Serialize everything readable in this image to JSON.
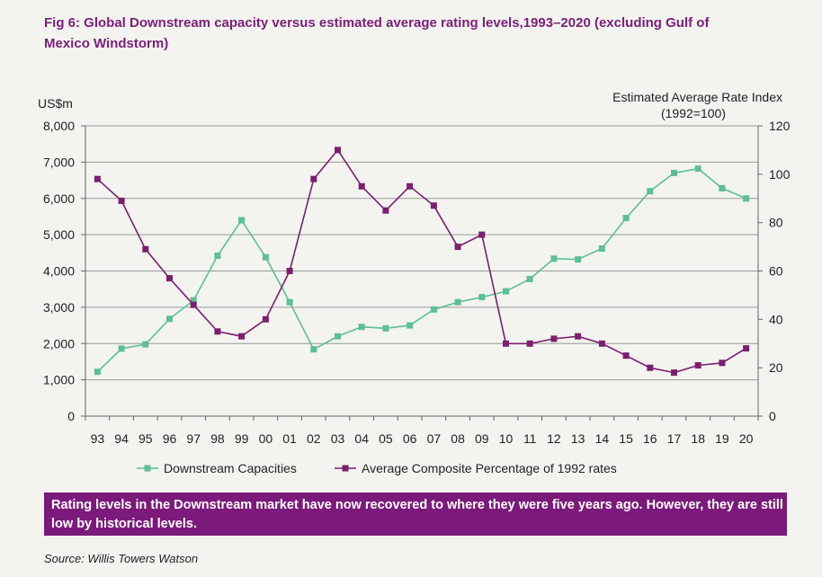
{
  "title": "Fig 6: Global Downstream capacity versus estimated average rating levels,1993–2020 (excluding Gulf of Mexico Windstorm)",
  "note": "Rating levels in the Downstream market have now recovered to where they were five years ago. However, they are still low by historical levels.",
  "source": "Source: Willis Towers Watson",
  "colors": {
    "capacity": "#5cbf96",
    "rating": "#7b1f6e",
    "note_bg": "#7b1a7b",
    "title": "#7a1f7a"
  },
  "chart_data": {
    "type": "line",
    "left_axis_label": "US$m",
    "right_axis_label_line1": "Estimated Average Rate Index",
    "right_axis_label_line2": "(1992=100)",
    "categories": [
      "93",
      "94",
      "95",
      "96",
      "97",
      "98",
      "99",
      "00",
      "01",
      "02",
      "03",
      "04",
      "05",
      "06",
      "07",
      "08",
      "09",
      "10",
      "11",
      "12",
      "13",
      "14",
      "15",
      "16",
      "17",
      "18",
      "19",
      "20"
    ],
    "y_left": {
      "min": 0,
      "max": 8000,
      "ticks": [
        "0",
        "1,000",
        "2,000",
        "3,000",
        "4,000",
        "5,000",
        "6,000",
        "7,000",
        "8,000"
      ]
    },
    "y_right": {
      "min": 0,
      "max": 120,
      "ticks": [
        "0",
        "20",
        "40",
        "60",
        "80",
        "100",
        "120"
      ]
    },
    "grid": "horizontal",
    "legend_position": "bottom",
    "series": [
      {
        "name": "Downstream Capacities",
        "axis": "left",
        "values": [
          1220,
          1860,
          1980,
          2680,
          3190,
          4420,
          5400,
          4380,
          3140,
          1840,
          2200,
          2460,
          2420,
          2500,
          2940,
          3140,
          3280,
          3440,
          3780,
          4340,
          4320,
          4620,
          5460,
          6200,
          6700,
          6820,
          6280,
          6000
        ]
      },
      {
        "name": "Average Composite Percentage of 1992 rates",
        "axis": "right",
        "values": [
          98,
          89,
          69,
          57,
          46,
          35,
          33,
          40,
          60,
          98,
          110,
          95,
          85,
          95,
          87,
          70,
          75,
          30,
          30,
          32,
          33,
          30,
          25,
          20,
          18,
          21,
          22,
          28
        ]
      }
    ]
  }
}
